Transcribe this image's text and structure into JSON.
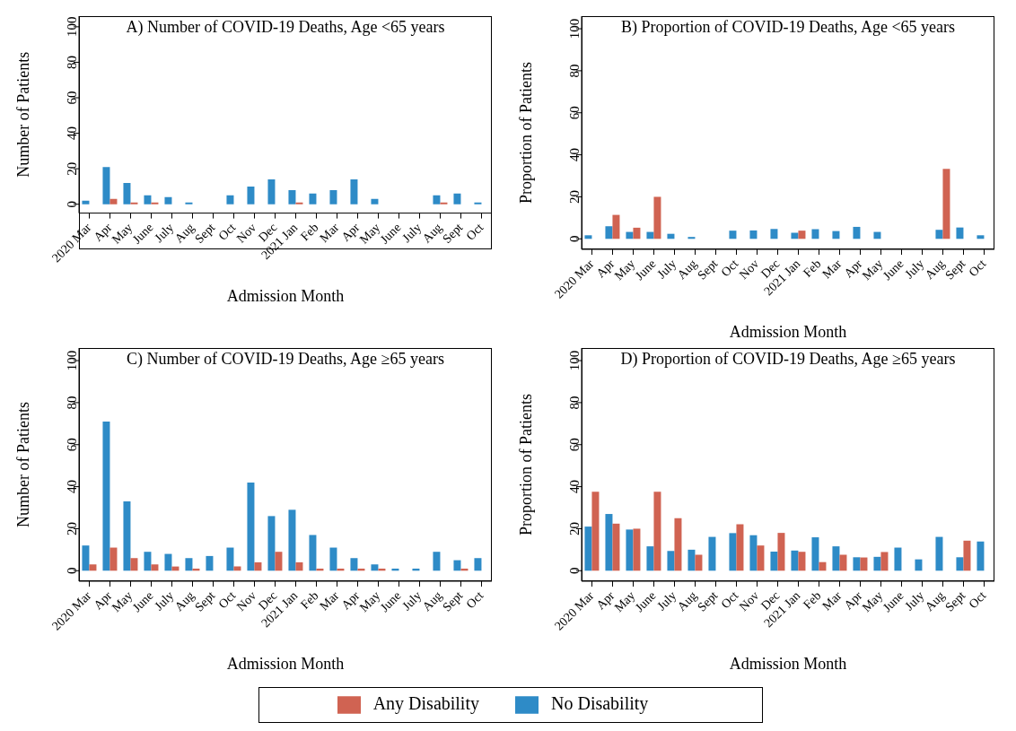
{
  "chart_data": [
    {
      "type": "bar",
      "title": "A) Number of COVID-19 Deaths, Age <65 years",
      "xlabel": "Admission Month",
      "ylabel": "Number of Patients",
      "categories": [
        "2020 Mar",
        "Apr",
        "May",
        "June",
        "July",
        "Aug",
        "Sept",
        "Oct",
        "Nov",
        "Dec",
        "2021 Jan",
        "Feb",
        "Mar",
        "Apr",
        "May",
        "June",
        "July",
        "Aug",
        "Sept",
        "Oct"
      ],
      "ylim": [
        -5,
        106
      ],
      "yticks": [
        0,
        20,
        40,
        60,
        80,
        100
      ],
      "grid": false,
      "legend": "bottom",
      "series": [
        {
          "name": "No Disability",
          "color": "#2e8bc7",
          "values": [
            2,
            21,
            12,
            5,
            4,
            1,
            0,
            5,
            10,
            14,
            8,
            6,
            8,
            14,
            3,
            0,
            0,
            5,
            6,
            1
          ]
        },
        {
          "name": "Any Disability",
          "color": "#d06352",
          "values": [
            0,
            3,
            1,
            1,
            0,
            0,
            0,
            0,
            0,
            0,
            1,
            0,
            0,
            0,
            0,
            0,
            0,
            1,
            0,
            0
          ]
        }
      ]
    },
    {
      "type": "bar",
      "title": "B) Proportion of COVID-19 Deaths, Age <65 years",
      "xlabel": "Admission Month",
      "ylabel": "Proportion of Patients",
      "categories": [
        "2020 Mar",
        "Apr",
        "May",
        "June",
        "July",
        "Aug",
        "Sept",
        "Oct",
        "Nov",
        "Dec",
        "2021 Jan",
        "Feb",
        "Mar",
        "Apr",
        "May",
        "June",
        "July",
        "Aug",
        "Sept",
        "Oct"
      ],
      "ylim": [
        -5,
        106
      ],
      "yticks": [
        0,
        20,
        40,
        60,
        80,
        100
      ],
      "grid": false,
      "series": [
        {
          "color": "#2e8bc7",
          "values": [
            1.7,
            6,
            3.3,
            3.3,
            2.4,
            0.9,
            0,
            3.9,
            4,
            4.7,
            2.9,
            4.6,
            3.7,
            5.7,
            3.3,
            0,
            0,
            4.3,
            5.4,
            1.7
          ]
        },
        {
          "color": "#d06352",
          "values": [
            0,
            11.4,
            5.3,
            20,
            0,
            0,
            0,
            0,
            0,
            0,
            3.9,
            0,
            0,
            0,
            0,
            0,
            0,
            33.3,
            0,
            0
          ]
        }
      ]
    },
    {
      "type": "bar",
      "title": "C) Number of COVID-19 Deaths, Age ≥65 years",
      "xlabel": "Admission Month",
      "ylabel": "Number of Patients",
      "categories": [
        "2020 Mar",
        "Apr",
        "May",
        "June",
        "July",
        "Aug",
        "Sept",
        "Oct",
        "Nov",
        "Dec",
        "2021 Jan",
        "Feb",
        "Mar",
        "Apr",
        "May",
        "June",
        "July",
        "Aug",
        "Sept",
        "Oct"
      ],
      "ylim": [
        -5,
        106
      ],
      "yticks": [
        0,
        20,
        40,
        60,
        80,
        100
      ],
      "grid": false,
      "series": [
        {
          "color": "#2e8bc7",
          "values": [
            12,
            71,
            33,
            9,
            8,
            6,
            7,
            11,
            42,
            26,
            29,
            17,
            11,
            6,
            3,
            1,
            1,
            9,
            5,
            6
          ]
        },
        {
          "color": "#d06352",
          "values": [
            3,
            11,
            6,
            3,
            2,
            1,
            0,
            2,
            4,
            9,
            4,
            1,
            1,
            1,
            1,
            0,
            0,
            0,
            1,
            0
          ]
        }
      ]
    },
    {
      "type": "bar",
      "title": "D) Proportion of COVID-19 Deaths, Age ≥65 years",
      "xlabel": "Admission Month",
      "ylabel": "Proportion of Patients",
      "categories": [
        "2020 Mar",
        "Apr",
        "May",
        "June",
        "July",
        "Aug",
        "Sept",
        "Oct",
        "Nov",
        "Dec",
        "2021 Jan",
        "Feb",
        "Mar",
        "Apr",
        "May",
        "June",
        "July",
        "Aug",
        "Sept",
        "Oct"
      ],
      "ylim": [
        -5,
        106
      ],
      "yticks": [
        0,
        20,
        40,
        60,
        80,
        100
      ],
      "grid": false,
      "series": [
        {
          "color": "#2e8bc7",
          "values": [
            21,
            27,
            19.6,
            11.6,
            9.4,
            10,
            16.1,
            17.9,
            16.9,
            9.1,
            9.6,
            15.9,
            11.6,
            6.4,
            6.6,
            11,
            5.4,
            16.1,
            6.4,
            13.9
          ]
        },
        {
          "color": "#d06352",
          "values": [
            37.6,
            22.4,
            20,
            37.6,
            25,
            7.6,
            0,
            22.1,
            12,
            18,
            9,
            4.1,
            7.6,
            6.3,
            8.9,
            0,
            0,
            0,
            14.3,
            0
          ]
        }
      ]
    }
  ]
}
